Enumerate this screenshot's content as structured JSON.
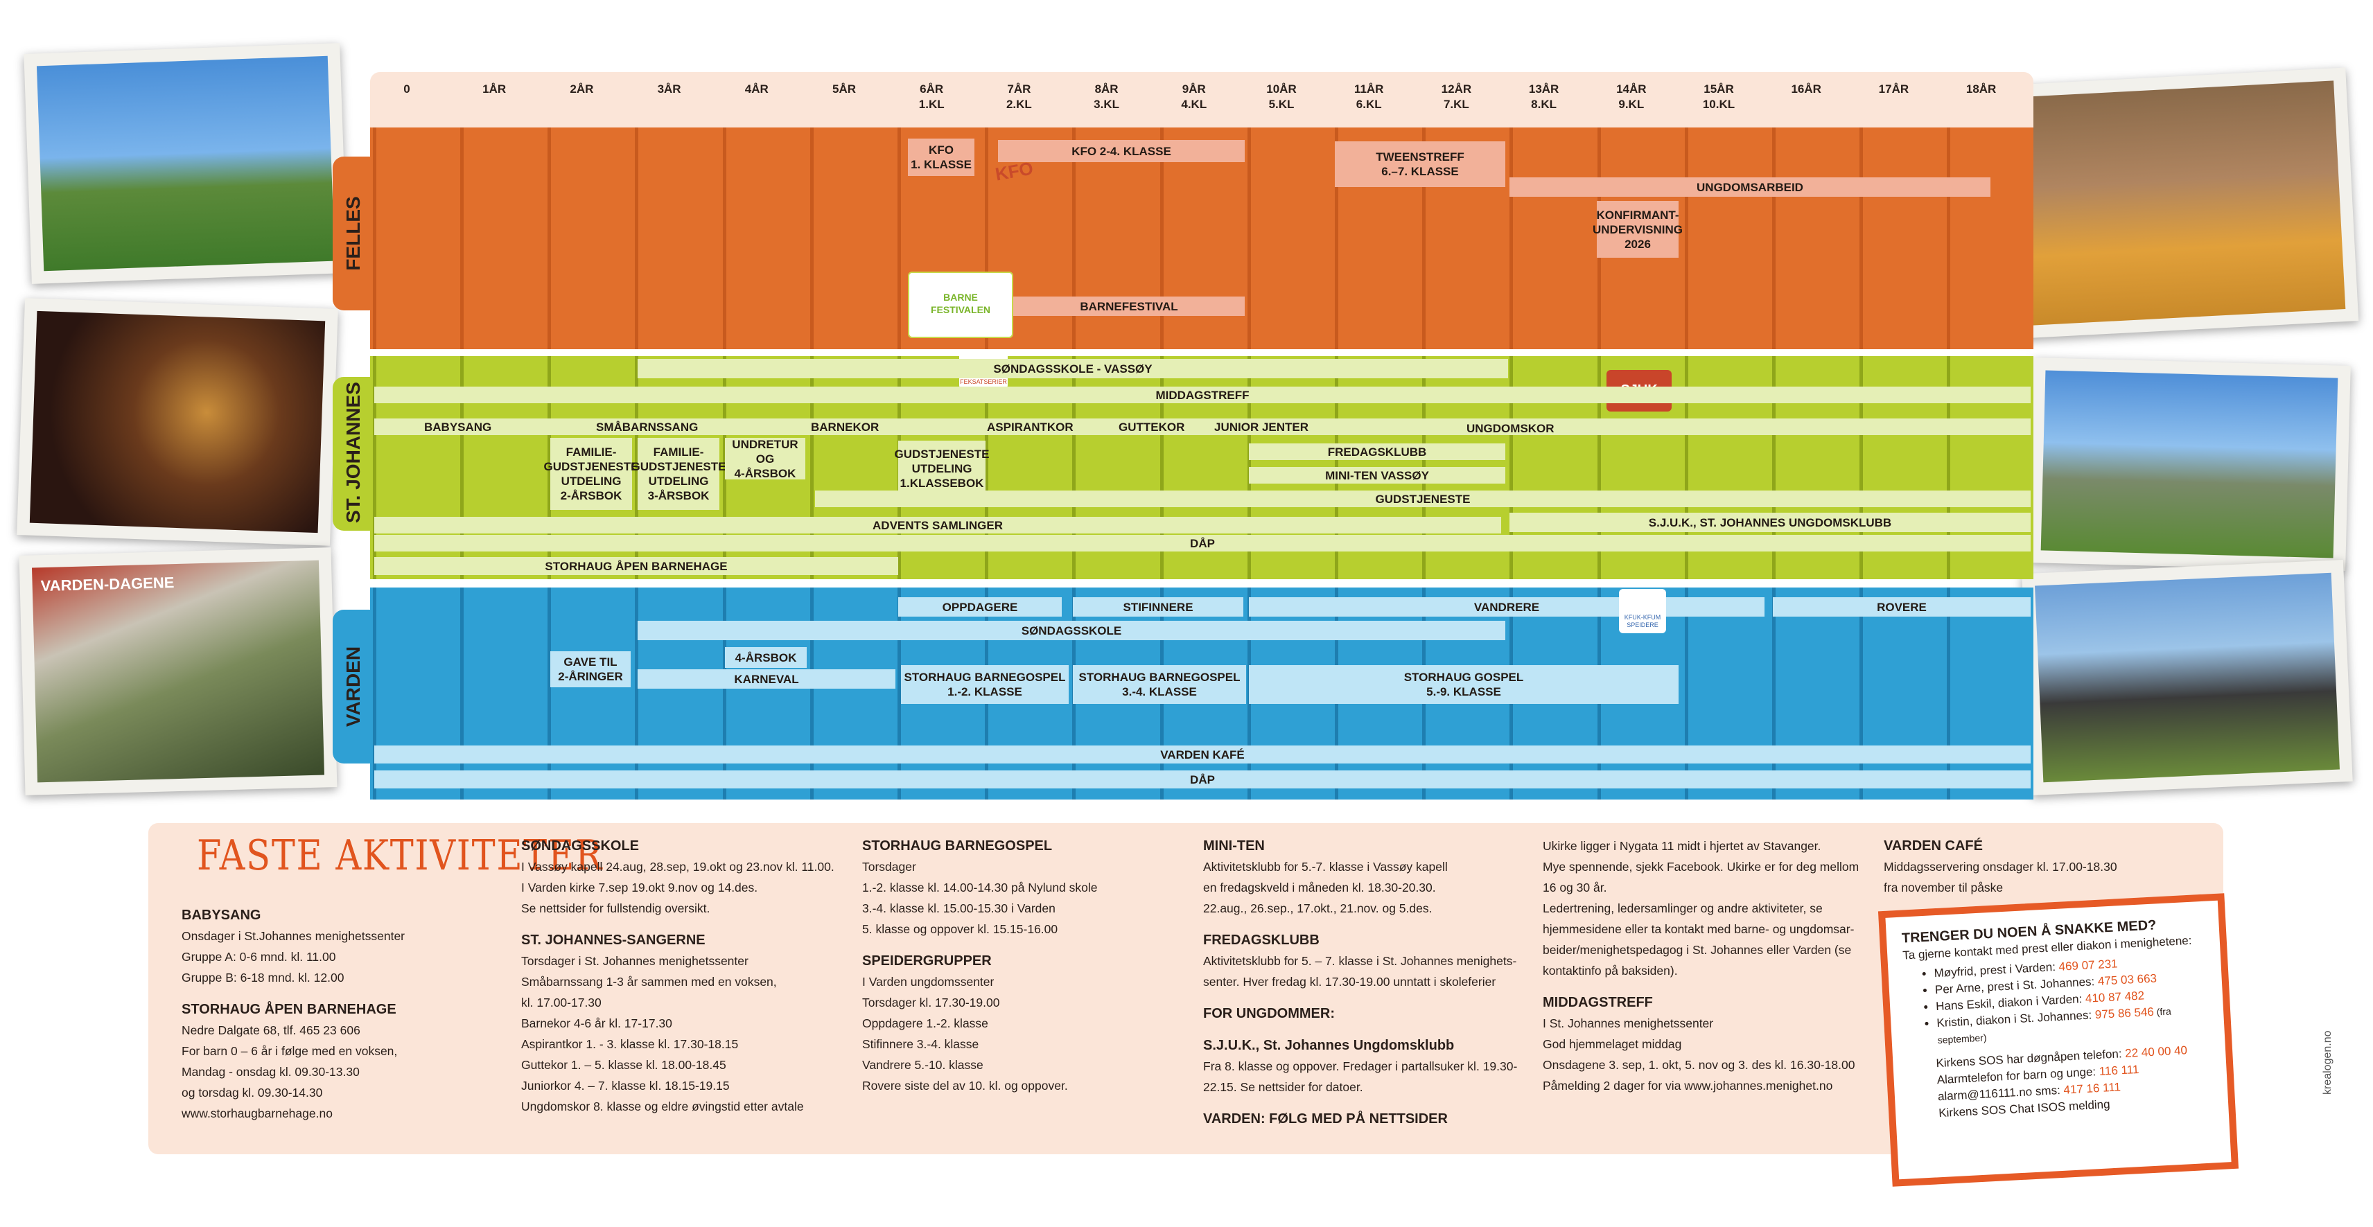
{
  "ages": [
    "0",
    "1ÅR",
    "2ÅR",
    "3ÅR",
    "4ÅR",
    "5ÅR",
    "6ÅR\n1.KL",
    "7ÅR\n2.KL",
    "8ÅR\n3.KL",
    "9ÅR\n4.KL",
    "10ÅR\n5.KL",
    "11ÅR\n6.KL",
    "12ÅR\n7.KL",
    "13ÅR\n8.KL",
    "14ÅR\n9.KL",
    "15ÅR\n10.KL",
    "16ÅR",
    "17ÅR",
    "18ÅR"
  ],
  "colors": {
    "felles": "#e16f2c",
    "felles_bar": "#f2b199",
    "johannes": "#b7cf2f",
    "johannes_bar": "#e5efb6",
    "varden": "#2fa0d4",
    "varden_bar": "#bfe5f6",
    "info_bg": "#fbe5d8",
    "title": "#e1541e"
  },
  "sections": {
    "felles": "FELLES",
    "johannes": "ST. JOHANNES",
    "varden": "VARDEN"
  },
  "felles": {
    "kfo1": "KFO\n1. KLASSE",
    "kfo24": "KFO 2-4. KLASSE",
    "kfo_logo": "KFO",
    "tweens": "TWEENSTREFF\n6.–7. KLASSE",
    "ungdomsarbeid": "UNGDOMSARBEID",
    "konfirmant": "KONFIRMANT-\nUNDERVISNING\n2026",
    "barnefestival": "BARNEFESTIVAL",
    "festival_logo": "BARNE FESTIVALEN"
  },
  "johannes": {
    "sondagsskole": "SØNDAGSSKOLE - VASSØY",
    "middagstreff": "MIDDAGSTREFF",
    "babysang": "BABYSANG",
    "smabarnssang": "SMÅBARNSSANG",
    "barnekor": "BARNEKOR",
    "aspirantkor": "ASPIRANTKOR",
    "guttekor": "GUTTEKOR",
    "juniorjenter": "JUNIOR JENTER",
    "ungdomskor": "UNGDOMSKOR",
    "fam2": "FAMILIE-\nGUDSTJENESTE\nUTDELING\n2-ÅRSBOK",
    "fam3": "FAMILIE-\nGUDSTJENESTE\nUTDELING\n3-ÅRSBOK",
    "undretur": "UNDRETUR OG\n4-ÅRSBOK",
    "gudstjeneste1kl": "GUDSTJENESTE\nUTDELING\n1.KLASSEBOK",
    "fredagsklubb": "FREDAGSKLUBB",
    "miniten": "MINI-TEN VASSØY",
    "gudstjeneste": "GUDSTJENESTE",
    "advents": "ADVENTS SAMLINGER",
    "sjuk": "S.J.U.K., ST. JOHANNES UNGDOMSKLUBB",
    "dap": "DÅP",
    "storhaug": "STORHAUG ÅPEN BARNEHAGE",
    "logo1": "FEKSATSERIER",
    "logo2": "SJUK"
  },
  "varden": {
    "oppdagere": "OPPDAGERE",
    "stifinnere": "STIFINNERE",
    "vandrere": "VANDRERE",
    "rovere": "ROVERE",
    "sondagsskole": "SØNDAGSSKOLE",
    "gave": "GAVE TIL\n2-ÅRINGER",
    "arsbok4": "4-ÅRSBOK",
    "karneval": "KARNEVAL",
    "bg12": "STORHAUG BARNEGOSPEL\n1.-2. KLASSE",
    "bg34": "STORHAUG BARNEGOSPEL\n3.-4. KLASSE",
    "gospel59": "STORHAUG GOSPEL\n5.-9. KLASSE",
    "kafe": "VARDEN KAFÉ",
    "dap": "DÅP",
    "kfuk": "KFUK-KFUM\nSPEIDERE"
  },
  "photo_caption": "VARDEN-DAGENE",
  "info": {
    "title": "FASTE AKTIVITETER",
    "col1": [
      {
        "h": "BABYSANG",
        "t": "Onsdager i St.Johannes menighetssenter\nGruppe A: 0-6 mnd. kl. 11.00\nGruppe B: 6-18 mnd. kl. 12.00"
      },
      {
        "h": "STORHAUG ÅPEN BARNEHAGE",
        "t": "Nedre Dalgate 68, tlf. 465 23 606\nFor barn 0 – 6 år i følge med en voksen,\nMandag - onsdag kl. 09.30-13.30\nog torsdag kl. 09.30-14.30\nwww.storhaugbarnehage.no"
      }
    ],
    "col2": [
      {
        "h": "SØNDAGSSKOLE",
        "t": "I Vassøy kapell 24.aug, 28.sep, 19.okt og 23.nov kl. 11.00.\nI Varden kirke 7.sep 19.okt 9.nov og 14.des.\nSe nettsider for fullstendig oversikt."
      },
      {
        "h": "ST. JOHANNES-SANGERNE",
        "t": "Torsdager i St. Johannes menighetssenter\nSmåbarnssang 1-3 år sammen med en voksen,\nkl. 17.00-17.30\nBarnekor 4-6 år kl. 17-17.30\nAspirantkor 1. - 3. klasse kl. 17.30-18.15\nGuttekor 1. – 5. klasse kl. 18.00-18.45\nJuniorkor 4. – 7. klasse kl. 18.15-19.15\nUngdomskor 8. klasse og eldre øvingstid etter avtale"
      }
    ],
    "col3": [
      {
        "h": "STORHAUG BARNEGOSPEL",
        "t": "Torsdager\n1.-2. klasse kl. 14.00-14.30 på Nylund skole\n3.-4. klasse kl. 15.00-15.30 i Varden\n5. klasse og oppover kl. 15.15-16.00"
      },
      {
        "h": "SPEIDERGRUPPER",
        "t": "I Varden ungdomssenter\nTorsdager kl. 17.30-19.00\nOppdagere 1.-2. klasse\nStifinnere 3.-4. klasse\nVandrere 5.-10. klasse\nRovere siste del av 10. kl. og oppover."
      }
    ],
    "col4": [
      {
        "h": "MINI-TEN",
        "t": "Aktivitetsklubb for 5.-7. klasse i Vassøy kapell\nen fredagskveld i måneden kl. 18.30-20.30.\n22.aug., 26.sep., 17.okt., 21.nov. og 5.des."
      },
      {
        "h": "FREDAGSKLUBB",
        "t": "Aktivitetsklubb for 5. – 7. klasse i St. Johannes menighets-\nsenter. Hver fredag kl. 17.30-19.00 unntatt i skoleferier"
      },
      {
        "h": "FOR UNGDOMMER:",
        "t": ""
      },
      {
        "h": "S.J.U.K., St. Johannes Ungdomsklubb",
        "t": "Fra  8. klasse og oppover. Fredager i partallsuker kl. 19.30-\n22.15. Se nettsider for datoer."
      },
      {
        "h": "VARDEN: FØLG MED PÅ NETTSIDER",
        "t": ""
      }
    ],
    "col5": [
      {
        "h": "",
        "t": "Ukirke ligger i Nygata 11 midt i hjertet av Stavanger.\nMye spennende, sjekk Facebook. Ukirke er for deg mellom\n16 og 30 år.\nLedertrening, ledersamlinger og andre aktiviteter, se\nhjemmesidene eller ta kontakt med barne- og ungdomsar-\nbeider/menighetspedagog i St. Johannes eller Varden (se\nkontaktinfo på baksiden)."
      },
      {
        "h": "MIDDAGSTREFF",
        "t": "I St. Johannes menighetssenter\nGod hjemmelaget middag\nOnsdagene 3. sep, 1. okt, 5. nov og 3. des kl. 16.30-18.00\nPåmelding 2 dager for via www.johannes.menighet.no"
      }
    ],
    "col6": [
      {
        "h": "VARDEN CAFÉ",
        "t": "Middagsservering onsdager kl. 17.00-18.30\nfra november til påske"
      }
    ]
  },
  "sos": {
    "title": "TRENGER DU NOEN Å SNAKKE MED?",
    "intro": "Ta gjerne kontakt med prest eller diakon i menighetene:",
    "contacts": [
      {
        "name": "Møyfrid, prest i Varden: ",
        "phone": "469 07 231",
        "note": ""
      },
      {
        "name": "Per Arne, prest i St. Johannes: ",
        "phone": "475 03 663",
        "note": ""
      },
      {
        "name": "Hans Eskil, diakon i Varden: ",
        "phone": "410 87 482",
        "note": ""
      },
      {
        "name": "Kristin, diakon i St. Johannes: ",
        "phone": "975 86 546",
        "note": " (fra september)"
      }
    ],
    "line1_label": "Kirkens SOS har døgnåpen telefon: ",
    "line1_value": "22 40 00 40",
    "line2_label": "Alarmtelefon for barn og unge: ",
    "line2_value": "116 111",
    "line3_label": "alarm@116111.no sms: ",
    "line3_value": "417 16 111",
    "line4": "Kirkens SOS Chat ISOS melding"
  },
  "credit": "krealogen.no"
}
